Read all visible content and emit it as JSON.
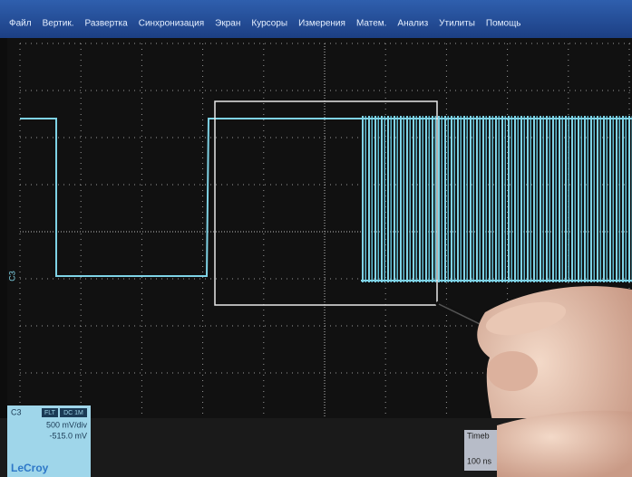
{
  "menu": {
    "items": [
      "Файл",
      "Вертик.",
      "Развертка",
      "Синхронизация",
      "Экран",
      "Курсоры",
      "Измерения",
      "Матем.",
      "Анализ",
      "Утилиты",
      "Помощь"
    ]
  },
  "trace_marker": "C3",
  "channel_panel": {
    "name": "C3",
    "badges": [
      "FLT",
      "DC 1M"
    ],
    "scale": "500 mV/div",
    "offset": "-515.0 mV",
    "brand": "LeCroy"
  },
  "timebase_panel": {
    "title": "Timeb",
    "value": "100 ns"
  }
}
